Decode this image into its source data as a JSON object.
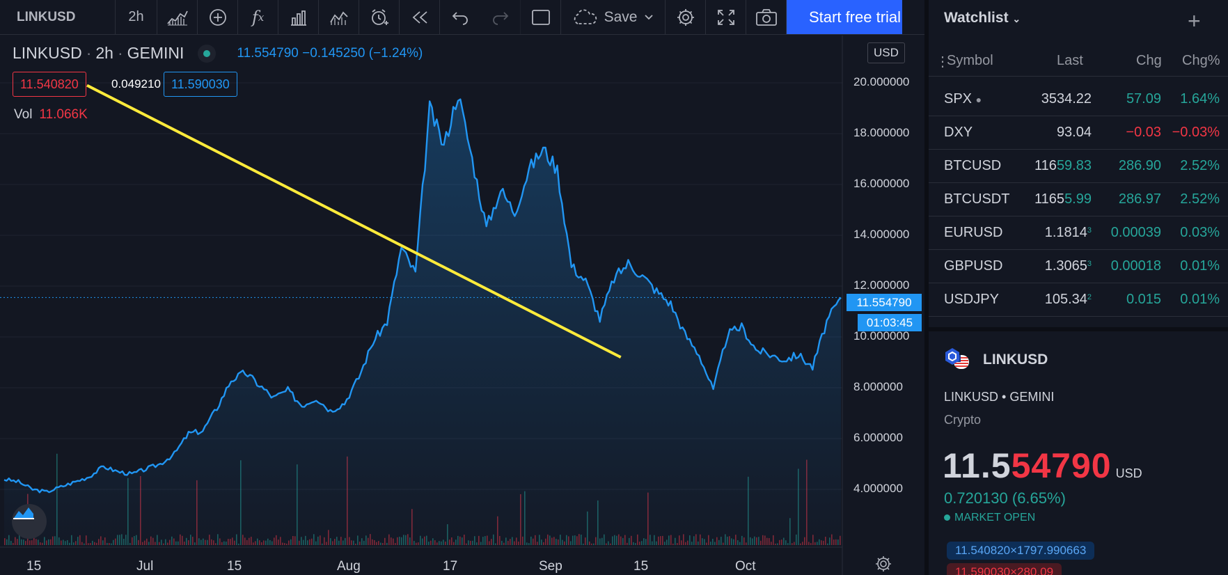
{
  "toolbar": {
    "symbol": "LINKUSD",
    "interval": "2h",
    "save_label": "Save",
    "trial_label": "Start free trial"
  },
  "legend": {
    "symbol": "LINKUSD",
    "interval": "2h",
    "exchange": "GEMINI",
    "price_change": "11.554790 −0.145250 (−1.24%)",
    "bid": "11.540820",
    "spread": "0.049210",
    "ask": "11.590030",
    "volume_label": "Vol",
    "volume_value": "11.066K"
  },
  "axis": {
    "currency": "USD",
    "y_ticks": [
      "20.000000",
      "18.000000",
      "16.000000",
      "14.000000",
      "12.000000",
      "10.000000",
      "8.000000",
      "6.000000",
      "4.000000"
    ],
    "x_ticks": [
      "15",
      "Jul",
      "15",
      "Aug",
      "17",
      "Sep",
      "15",
      "Oct"
    ],
    "last_price_tag": "11.554790",
    "countdown_tag": "01:03:45"
  },
  "chart_data": {
    "type": "area",
    "x_ticks": [
      "15",
      "Jul",
      "15",
      "Aug",
      "17",
      "Sep",
      "15",
      "Oct"
    ],
    "ylim": [
      2.3,
      21.5
    ],
    "series": [
      {
        "values": [
          4.4,
          4.3,
          4.0,
          3.9,
          4.1,
          4.3,
          4.5,
          4.9,
          4.7,
          4.6,
          4.8,
          5.0,
          5.4,
          6.2,
          6.3,
          7.2,
          8.3,
          8.6,
          8.1,
          7.6,
          7.9,
          7.3,
          7.6,
          7.1,
          7.4,
          8.4,
          9.8,
          10.6,
          13.5,
          12.5,
          19.0,
          17.5,
          19.6,
          17.0,
          14.3,
          15.8,
          14.9,
          16.6,
          17.4,
          16.6,
          12.8,
          12.2,
          10.7,
          12.3,
          12.9,
          12.4,
          11.8,
          11.3,
          10.1,
          9.3,
          7.9,
          10.1,
          10.4,
          9.5,
          9.3,
          9.1,
          9.3,
          8.8,
          10.6,
          11.55
        ]
      },
      {
        "type": "trendline",
        "x": [
          0.09,
          0.67
        ],
        "values": [
          19.9,
          9.2
        ],
        "color": "#ffeb3b"
      }
    ],
    "volume_label": "Vol"
  },
  "watchlist": {
    "title": "Watchlist",
    "columns": [
      "Symbol",
      "Last",
      "Chg",
      "Chg%"
    ],
    "rows": [
      {
        "symbol": "SPX",
        "last": "3534.22",
        "last_a": "",
        "last_b": "",
        "last_c": "",
        "chg": "57.09",
        "chgp": "1.64%",
        "dir": "up"
      },
      {
        "symbol": "DXY",
        "last": "93.04",
        "last_a": "",
        "last_b": "",
        "last_c": "",
        "chg": "−0.03",
        "chgp": "−0.03%",
        "dir": "dn"
      },
      {
        "symbol": "BTCUSD",
        "last": "",
        "last_a": "116",
        "last_b": "59.83",
        "last_c": "",
        "chg": "286.90",
        "chgp": "2.52%",
        "dir": "up"
      },
      {
        "symbol": "BTCUSDT",
        "last": "",
        "last_a": "1165",
        "last_b": "5.99",
        "last_c": "",
        "chg": "286.97",
        "chgp": "2.52%",
        "dir": "up"
      },
      {
        "symbol": "EURUSD",
        "last": "",
        "last_a": "1.1814",
        "last_b": "",
        "last_c": "3",
        "chg": "0.00039",
        "chgp": "0.03%",
        "dir": "up"
      },
      {
        "symbol": "GBPUSD",
        "last": "",
        "last_a": "1.3065",
        "last_b": "",
        "last_c": "3",
        "chg": "0.00018",
        "chgp": "0.01%",
        "dir": "up"
      },
      {
        "symbol": "USDJPY",
        "last": "",
        "last_a": "105.34",
        "last_b": "",
        "last_c": "2",
        "chg": "0.015",
        "chgp": "0.01%",
        "dir": "up"
      }
    ]
  },
  "details": {
    "name": "LINKUSD",
    "exchange_line": "LINKUSD • GEMINI",
    "type": "Crypto",
    "price_a": "11.5",
    "price_b": "54790",
    "currency": "USD",
    "change": "0.720130 (6.65%)",
    "status": "MARKET OPEN",
    "bid_pill": "11.540820×1797.990663",
    "ask_pill": "11.590030×280.09"
  },
  "colors": {
    "accent": "#2196f3",
    "up": "#26a69a",
    "down": "#f23645",
    "trendline": "#ffeb3b",
    "background": "#131722"
  }
}
